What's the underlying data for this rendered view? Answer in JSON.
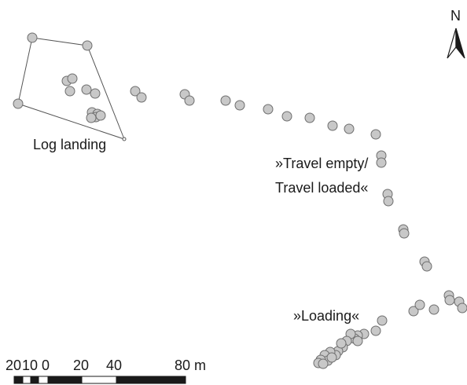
{
  "north_arrow": {
    "label": "N"
  },
  "labels": {
    "log_landing": "Log landing",
    "travel_line1": "»Travel empty/",
    "travel_line2": "Travel loaded«",
    "loading": "»Loading«"
  },
  "scale_bar": {
    "ticks": [
      "20",
      "10",
      "0",
      "20",
      "40",
      "80 m"
    ],
    "unit": "m"
  },
  "style": {
    "point_fill": "#c8c8c8",
    "point_stroke": "#6e6e6e",
    "line_color": "#555555",
    "text_color": "#1a1a1a"
  }
}
